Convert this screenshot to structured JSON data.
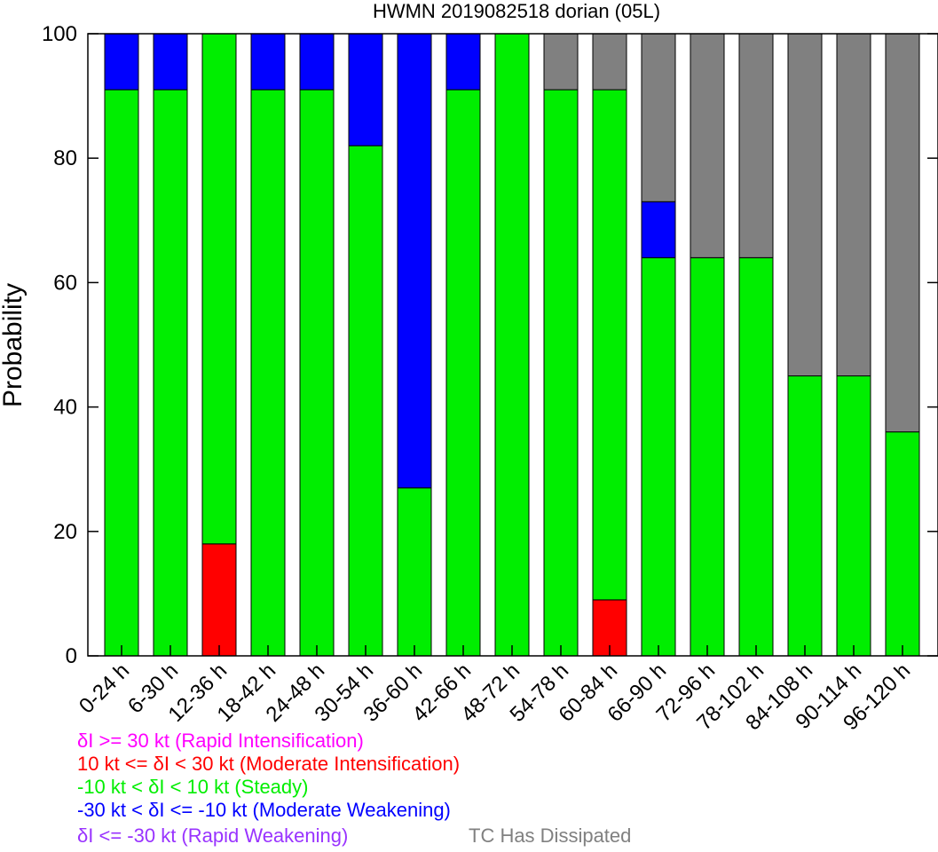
{
  "chart_data": {
    "type": "bar",
    "stacked": true,
    "title": "HWMN 2019082518 dorian (05L)",
    "xlabel": "",
    "ylabel": "Probability",
    "ylim": [
      0,
      100
    ],
    "yticks": [
      0,
      20,
      40,
      60,
      80,
      100
    ],
    "categories": [
      "0-24 h",
      "6-30 h",
      "12-36 h",
      "18-42 h",
      "24-48 h",
      "30-54 h",
      "36-60 h",
      "42-66 h",
      "48-72 h",
      "54-78 h",
      "60-84 h",
      "66-90 h",
      "72-96 h",
      "78-102 h",
      "84-108 h",
      "90-114 h",
      "96-120 h"
    ],
    "series": [
      {
        "key": "ri",
        "color": "#ff00ff",
        "values": [
          0,
          0,
          0,
          0,
          0,
          0,
          0,
          0,
          0,
          0,
          0,
          0,
          0,
          0,
          0,
          0,
          0
        ]
      },
      {
        "key": "mi",
        "color": "#ff0000",
        "values": [
          0,
          0,
          18,
          0,
          0,
          0,
          0,
          0,
          0,
          0,
          9,
          0,
          0,
          0,
          0,
          0,
          0
        ]
      },
      {
        "key": "st",
        "color": "#00ee00",
        "values": [
          91,
          91,
          82,
          91,
          91,
          82,
          27,
          91,
          100,
          91,
          82,
          64,
          64,
          64,
          45,
          45,
          36
        ]
      },
      {
        "key": "mw",
        "color": "#0000ff",
        "values": [
          9,
          9,
          0,
          9,
          9,
          18,
          73,
          9,
          0,
          0,
          0,
          9,
          0,
          0,
          0,
          0,
          0
        ]
      },
      {
        "key": "rw",
        "color": "#9933ff",
        "values": [
          0,
          0,
          0,
          0,
          0,
          0,
          0,
          0,
          0,
          0,
          0,
          0,
          0,
          0,
          0,
          0,
          0
        ]
      },
      {
        "key": "diss",
        "color": "#808080",
        "values": [
          0,
          0,
          0,
          0,
          0,
          0,
          0,
          0,
          0,
          9,
          9,
          27,
          36,
          36,
          55,
          55,
          64
        ]
      }
    ],
    "legend": [
      {
        "text": "δI >= 30 kt (Rapid Intensification)",
        "color": "#ff00ff"
      },
      {
        "text": "10 kt <= δI < 30 kt (Moderate Intensification)",
        "color": "#ff0000"
      },
      {
        "text": "-10 kt < δI < 10 kt (Steady)",
        "color": "#00ee00"
      },
      {
        "text": "-30 kt < δI <= -10 kt (Moderate Weakening)",
        "color": "#0000ff"
      },
      {
        "text": "δI <= -30 kt (Rapid Weakening)",
        "color": "#9933ff"
      },
      {
        "text": "TC Has Dissipated",
        "color": "#808080"
      }
    ],
    "grid": false,
    "legend_placement": "bottom"
  }
}
